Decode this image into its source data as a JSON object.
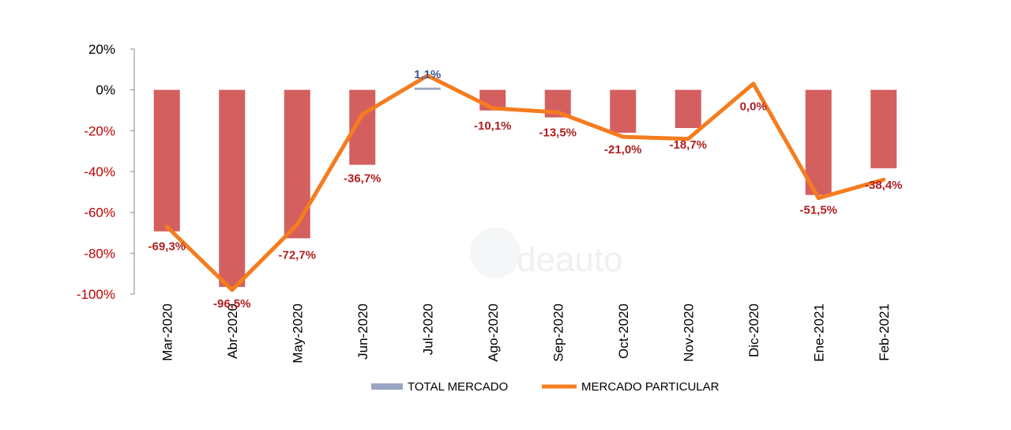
{
  "chart_data": {
    "type": "bar",
    "title": "",
    "xlabel": "",
    "ylabel": "",
    "ylim": [
      -100,
      20
    ],
    "y_ticks": [
      20,
      0,
      -20,
      -40,
      -60,
      -80,
      -100
    ],
    "y_tick_labels": [
      "20%",
      "0%",
      "-20%",
      "-40%",
      "-60%",
      "-80%",
      "-100%"
    ],
    "categories": [
      "Mar-2020",
      "Abr-2020",
      "May-2020",
      "Jun-2020",
      "Jul-2020",
      "Ago-2020",
      "Sep-2020",
      "Oct-2020",
      "Nov-2020",
      "Dic-2020",
      "Ene-2021",
      "Feb-2021"
    ],
    "series": [
      {
        "name": "TOTAL MERCADO",
        "type": "bar",
        "values": [
          -69.3,
          -96.5,
          -72.7,
          -36.7,
          1.1,
          -10.1,
          -13.5,
          -21.0,
          -18.7,
          0.0,
          -51.5,
          -38.4
        ],
        "labels": [
          "-69,3%",
          "-96,5%",
          "-72,7%",
          "-36,7%",
          "1,1%",
          "-10,1%",
          "-13,5%",
          "-21,0%",
          "-18,7%",
          "0,0%",
          "-51,5%",
          "-38,4%"
        ]
      },
      {
        "name": "MERCADO PARTICULAR",
        "type": "line",
        "values": [
          -67,
          -98,
          -66,
          -12,
          7,
          -9,
          -11,
          -23,
          -24,
          3,
          -53,
          -44
        ]
      }
    ],
    "legend_position": "bottom"
  },
  "watermark": {
    "text": "deauto"
  },
  "colors": {
    "bar_negative": "#d45f5f",
    "bar_positive": "#9aa6c3",
    "line": "#f57c1f",
    "label_negative": "#b02020",
    "label_positive": "#3b5a9a",
    "axis": "#888888"
  }
}
